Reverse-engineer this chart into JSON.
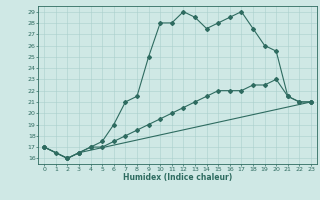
{
  "xlabel": "Humidex (Indice chaleur)",
  "background_color": "#cfe8e5",
  "grid_color": "#aacfcc",
  "line_color": "#2e6b60",
  "xlim": [
    -0.5,
    23.5
  ],
  "ylim": [
    15.5,
    29.5
  ],
  "xticks": [
    0,
    1,
    2,
    3,
    4,
    5,
    6,
    7,
    8,
    9,
    10,
    11,
    12,
    13,
    14,
    15,
    16,
    17,
    18,
    19,
    20,
    21,
    22,
    23
  ],
  "yticks": [
    16,
    17,
    18,
    19,
    20,
    21,
    22,
    23,
    24,
    25,
    26,
    27,
    28,
    29
  ],
  "line1_x": [
    0,
    1,
    2,
    3,
    4,
    5,
    6,
    7,
    8,
    9,
    10,
    11,
    12,
    13,
    14,
    15,
    16,
    17,
    18,
    19,
    20,
    21,
    22,
    23
  ],
  "line1_y": [
    17,
    16.5,
    16,
    16.5,
    17,
    17.5,
    19,
    21,
    21.5,
    25,
    28,
    28,
    29,
    28.5,
    27.5,
    28,
    28.5,
    29,
    27.5,
    26,
    25.5,
    21.5,
    21,
    21
  ],
  "line2_x": [
    0,
    2,
    3,
    4,
    5,
    6,
    7,
    8,
    9,
    10,
    11,
    12,
    13,
    14,
    15,
    16,
    17,
    18,
    19,
    20,
    21,
    22,
    23
  ],
  "line2_y": [
    17,
    16,
    16.5,
    17,
    17,
    17.5,
    18,
    18.5,
    19,
    19.5,
    20,
    20.5,
    21,
    21.5,
    22,
    22,
    22,
    22.5,
    22.5,
    23,
    21.5,
    21,
    21
  ],
  "line3_x": [
    0,
    2,
    3,
    23
  ],
  "line3_y": [
    17,
    16,
    16.5,
    21
  ]
}
